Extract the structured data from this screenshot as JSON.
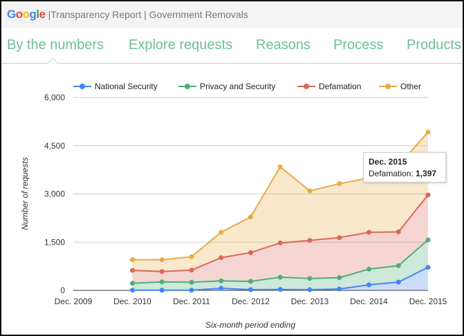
{
  "header": {
    "logo": "Google",
    "title": "|Transparency Report | Government Removals"
  },
  "nav": [
    "By the numbers",
    "Explore requests",
    "Reasons",
    "Process",
    "Products"
  ],
  "chart_data": {
    "type": "area",
    "stacked": true,
    "x": [
      "Dec. 2010",
      "Jun. 2011",
      "Dec. 2011",
      "Jun. 2012",
      "Dec. 2012",
      "Jun. 2013",
      "Dec. 2013",
      "Jun. 2014",
      "Dec. 2014",
      "Jun. 2015",
      "Dec. 2015"
    ],
    "xticks": [
      "Dec. 2009",
      "Dec. 2010",
      "Dec. 2011",
      "Dec. 2012",
      "Dec. 2013",
      "Dec. 2014",
      "Dec. 2015"
    ],
    "yticks": [
      "0",
      "1,500",
      "3,000",
      "4,500",
      "6,000"
    ],
    "ylim": [
      0,
      6000
    ],
    "xlabel": "Six-month period ending",
    "ylabel": "Number of requests",
    "legend_position": "top",
    "series": [
      {
        "name": "National Security",
        "color": "#4285f4",
        "values": [
          6,
          6,
          6,
          65,
          22,
          28,
          22,
          43,
          172,
          258,
          716
        ]
      },
      {
        "name": "Privacy and Security",
        "color": "#4fae76",
        "values": [
          215,
          258,
          246,
          230,
          258,
          381,
          350,
          351,
          488,
          510,
          854
        ]
      },
      {
        "name": "Defamation",
        "color": "#d9675a",
        "values": [
          403,
          323,
          378,
          722,
          896,
          1068,
          1183,
          1247,
          1146,
          1053,
          1397
        ]
      },
      {
        "name": "Other",
        "color": "#e8ab45",
        "values": [
          329,
          366,
          417,
          789,
          1109,
          2365,
          1541,
          1676,
          1694,
          2071,
          1957
        ]
      }
    ],
    "tooltip": {
      "title": "Dec. 2015",
      "label": "Defamation:",
      "value": "1,397"
    }
  }
}
